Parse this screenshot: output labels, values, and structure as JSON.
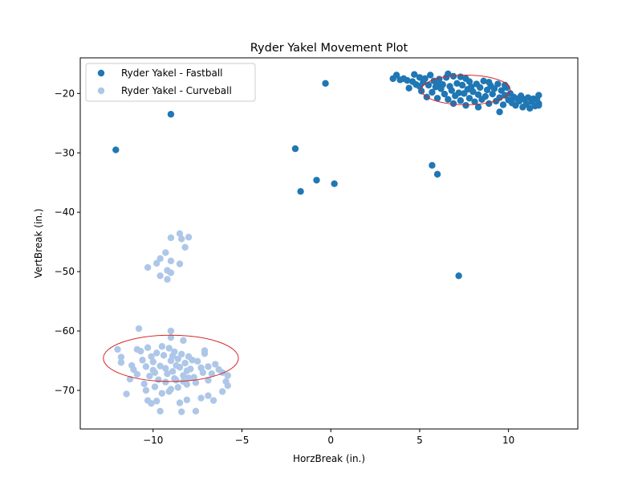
{
  "chart_data": {
    "type": "scatter",
    "title": "Ryder Yakel Movement Plot",
    "xlabel": "HorzBreak (in.)",
    "ylabel": "VertBreak (in.)",
    "xlim": [
      -14.1,
      13.9
    ],
    "ylim": [
      -76.5,
      -14.0
    ],
    "xticks": [
      -10,
      -5,
      0,
      5,
      10
    ],
    "xtick_labels": [
      "−10",
      "−5",
      "0",
      "5",
      "10"
    ],
    "yticks": [
      -70,
      -60,
      -50,
      -40,
      -30,
      -20
    ],
    "ytick_labels": [
      "−70",
      "−60",
      "−50",
      "−40",
      "−30",
      "−20"
    ],
    "grid": false,
    "legend": "top-left",
    "series": [
      {
        "name": "Ryder Yakel - Fastball",
        "color": "#1f77b4",
        "points": [
          [
            -0.3,
            -18.3
          ],
          [
            -12.1,
            -29.5
          ],
          [
            -9.0,
            -23.5
          ],
          [
            -2.0,
            -29.3
          ],
          [
            -1.7,
            -36.5
          ],
          [
            -0.8,
            -34.6
          ],
          [
            0.2,
            -35.2
          ],
          [
            5.7,
            -32.1
          ],
          [
            6.0,
            -33.6
          ],
          [
            7.2,
            -50.7
          ],
          [
            3.5,
            -17.5
          ],
          [
            3.7,
            -16.9
          ],
          [
            3.9,
            -17.7
          ],
          [
            4.1,
            -17.5
          ],
          [
            4.3,
            -17.8
          ],
          [
            4.4,
            -19.1
          ],
          [
            4.6,
            -18.0
          ],
          [
            4.7,
            -16.8
          ],
          [
            4.8,
            -18.5
          ],
          [
            5.0,
            -17.3
          ],
          [
            5.1,
            -19.6
          ],
          [
            5.2,
            -18.1
          ],
          [
            5.3,
            -17.5
          ],
          [
            5.4,
            -20.6
          ],
          [
            5.5,
            -18.6
          ],
          [
            5.6,
            -16.9
          ],
          [
            5.7,
            -19.8
          ],
          [
            5.8,
            -17.9
          ],
          [
            5.9,
            -18.9
          ],
          [
            6.0,
            -20.8
          ],
          [
            6.1,
            -17.6
          ],
          [
            6.2,
            -19.2
          ],
          [
            6.3,
            -18.5
          ],
          [
            6.4,
            -20.1
          ],
          [
            6.5,
            -17.3
          ],
          [
            6.6,
            -21.0
          ],
          [
            6.7,
            -18.8
          ],
          [
            6.8,
            -19.5
          ],
          [
            6.9,
            -17.1
          ],
          [
            7.0,
            -20.4
          ],
          [
            7.1,
            -18.3
          ],
          [
            7.2,
            -19.9
          ],
          [
            7.3,
            -21.2
          ],
          [
            7.4,
            -18.6
          ],
          [
            7.5,
            -20.0
          ],
          [
            7.6,
            -17.5
          ],
          [
            7.7,
            -19.3
          ],
          [
            7.8,
            -20.8
          ],
          [
            7.9,
            -18.9
          ],
          [
            8.0,
            -19.7
          ],
          [
            8.1,
            -21.4
          ],
          [
            8.2,
            -18.4
          ],
          [
            8.3,
            -20.2
          ],
          [
            8.4,
            -19.0
          ],
          [
            8.5,
            -21.0
          ],
          [
            8.6,
            -17.9
          ],
          [
            8.7,
            -20.5
          ],
          [
            8.8,
            -19.4
          ],
          [
            8.9,
            -21.7
          ],
          [
            9.0,
            -18.7
          ],
          [
            9.1,
            -20.1
          ],
          [
            9.2,
            -19.2
          ],
          [
            9.3,
            -21.3
          ],
          [
            9.4,
            -18.4
          ],
          [
            9.5,
            -20.7
          ],
          [
            9.6,
            -19.5
          ],
          [
            9.7,
            -21.9
          ],
          [
            9.8,
            -20.3
          ],
          [
            9.9,
            -19.0
          ],
          [
            10.0,
            -21.1
          ],
          [
            10.1,
            -20.0
          ],
          [
            10.2,
            -21.6
          ],
          [
            10.3,
            -20.6
          ],
          [
            10.4,
            -22.0
          ],
          [
            10.5,
            -20.9
          ],
          [
            10.6,
            -21.3
          ],
          [
            10.7,
            -20.4
          ],
          [
            10.8,
            -22.3
          ],
          [
            10.9,
            -21.0
          ],
          [
            11.0,
            -21.8
          ],
          [
            11.1,
            -20.7
          ],
          [
            11.2,
            -22.5
          ],
          [
            11.3,
            -21.4
          ],
          [
            11.4,
            -20.9
          ],
          [
            11.5,
            -22.1
          ],
          [
            11.6,
            -21.0
          ],
          [
            11.7,
            -21.7
          ],
          [
            11.7,
            -20.3
          ],
          [
            11.7,
            -22.0
          ],
          [
            9.5,
            -23.1
          ],
          [
            8.3,
            -22.3
          ],
          [
            6.9,
            -21.7
          ],
          [
            7.6,
            -22.0
          ],
          [
            5.0,
            -18.8
          ],
          [
            6.6,
            -16.7
          ],
          [
            7.3,
            -17.2
          ],
          [
            8.9,
            -18.1
          ],
          [
            9.8,
            -18.6
          ],
          [
            6.1,
            -18.3
          ],
          [
            7.8,
            -18.0
          ]
        ]
      },
      {
        "name": "Ryder Yakel - Curveball",
        "color": "#aec7e8",
        "points": [
          [
            -8.5,
            -43.6
          ],
          [
            -8.4,
            -44.5
          ],
          [
            -8.0,
            -44.2
          ],
          [
            -9.0,
            -44.3
          ],
          [
            -8.2,
            -45.9
          ],
          [
            -9.3,
            -46.8
          ],
          [
            -9.6,
            -47.8
          ],
          [
            -9.8,
            -48.6
          ],
          [
            -8.5,
            -48.7
          ],
          [
            -10.3,
            -49.3
          ],
          [
            -9.2,
            -49.8
          ],
          [
            -9.6,
            -50.7
          ],
          [
            -9.2,
            -51.3
          ],
          [
            -9.0,
            -50.2
          ],
          [
            -9.0,
            -48.2
          ],
          [
            -10.8,
            -59.6
          ],
          [
            -9.0,
            -60.0
          ],
          [
            -9.0,
            -61.1
          ],
          [
            -8.3,
            -61.6
          ],
          [
            -12.0,
            -63.1
          ],
          [
            -11.8,
            -64.4
          ],
          [
            -11.8,
            -65.3
          ],
          [
            -11.2,
            -65.8
          ],
          [
            -11.1,
            -66.5
          ],
          [
            -10.9,
            -63.1
          ],
          [
            -10.6,
            -64.9
          ],
          [
            -10.3,
            -62.8
          ],
          [
            -10.1,
            -64.3
          ],
          [
            -10.0,
            -66.6
          ],
          [
            -9.8,
            -63.7
          ],
          [
            -9.6,
            -65.9
          ],
          [
            -9.4,
            -64.1
          ],
          [
            -9.2,
            -67.2
          ],
          [
            -9.1,
            -62.9
          ],
          [
            -9.0,
            -65.0
          ],
          [
            -8.9,
            -66.8
          ],
          [
            -8.8,
            -63.5
          ],
          [
            -8.7,
            -68.3
          ],
          [
            -8.6,
            -64.7
          ],
          [
            -8.5,
            -66.1
          ],
          [
            -8.4,
            -63.9
          ],
          [
            -8.3,
            -67.5
          ],
          [
            -8.2,
            -65.4
          ],
          [
            -8.1,
            -69.0
          ],
          [
            -8.0,
            -64.3
          ],
          [
            -7.9,
            -66.4
          ],
          [
            -7.7,
            -67.8
          ],
          [
            -7.5,
            -65.1
          ],
          [
            -7.3,
            -66.2
          ],
          [
            -7.1,
            -63.3
          ],
          [
            -7.1,
            -63.8
          ],
          [
            -6.9,
            -66.0
          ],
          [
            -6.7,
            -67.2
          ],
          [
            -6.5,
            -65.6
          ],
          [
            -6.3,
            -66.5
          ],
          [
            -6.1,
            -67.0
          ],
          [
            -5.9,
            -68.5
          ],
          [
            -5.8,
            -69.2
          ],
          [
            -5.8,
            -67.5
          ],
          [
            -6.1,
            -70.2
          ],
          [
            -6.6,
            -71.7
          ],
          [
            -6.9,
            -70.9
          ],
          [
            -7.3,
            -71.3
          ],
          [
            -7.6,
            -73.5
          ],
          [
            -8.1,
            -71.6
          ],
          [
            -8.4,
            -73.6
          ],
          [
            -8.5,
            -72.1
          ],
          [
            -9.1,
            -70.2
          ],
          [
            -9.6,
            -73.5
          ],
          [
            -9.8,
            -71.8
          ],
          [
            -10.1,
            -72.2
          ],
          [
            -10.3,
            -71.7
          ],
          [
            -10.4,
            -70.0
          ],
          [
            -11.5,
            -70.6
          ],
          [
            -11.3,
            -68.1
          ],
          [
            -10.9,
            -67.3
          ],
          [
            -10.5,
            -68.9
          ],
          [
            -10.2,
            -67.6
          ],
          [
            -9.9,
            -69.4
          ],
          [
            -9.7,
            -68.2
          ],
          [
            -9.5,
            -70.5
          ],
          [
            -9.3,
            -68.6
          ],
          [
            -9.0,
            -69.8
          ],
          [
            -8.8,
            -68.0
          ],
          [
            -8.6,
            -69.5
          ],
          [
            -8.3,
            -68.5
          ],
          [
            -8.0,
            -67.9
          ],
          [
            -7.6,
            -68.7
          ],
          [
            -7.2,
            -67.0
          ],
          [
            -6.9,
            -68.3
          ],
          [
            -9.5,
            -62.6
          ],
          [
            -10.7,
            -63.4
          ],
          [
            -10.0,
            -65.2
          ],
          [
            -9.3,
            -66.3
          ],
          [
            -8.7,
            -65.8
          ],
          [
            -8.1,
            -66.7
          ],
          [
            -7.8,
            -64.9
          ],
          [
            -9.9,
            -67.0
          ],
          [
            -10.4,
            -66.0
          ],
          [
            -8.9,
            -64.2
          ]
        ]
      }
    ],
    "ellipses": [
      {
        "cx": 7.6,
        "cy": -19.4,
        "rx": 2.5,
        "ry": 2.5,
        "color": "#d62728"
      },
      {
        "cx": -9.0,
        "cy": -64.6,
        "rx": 3.8,
        "ry": 3.9,
        "color": "#d62728"
      }
    ]
  }
}
